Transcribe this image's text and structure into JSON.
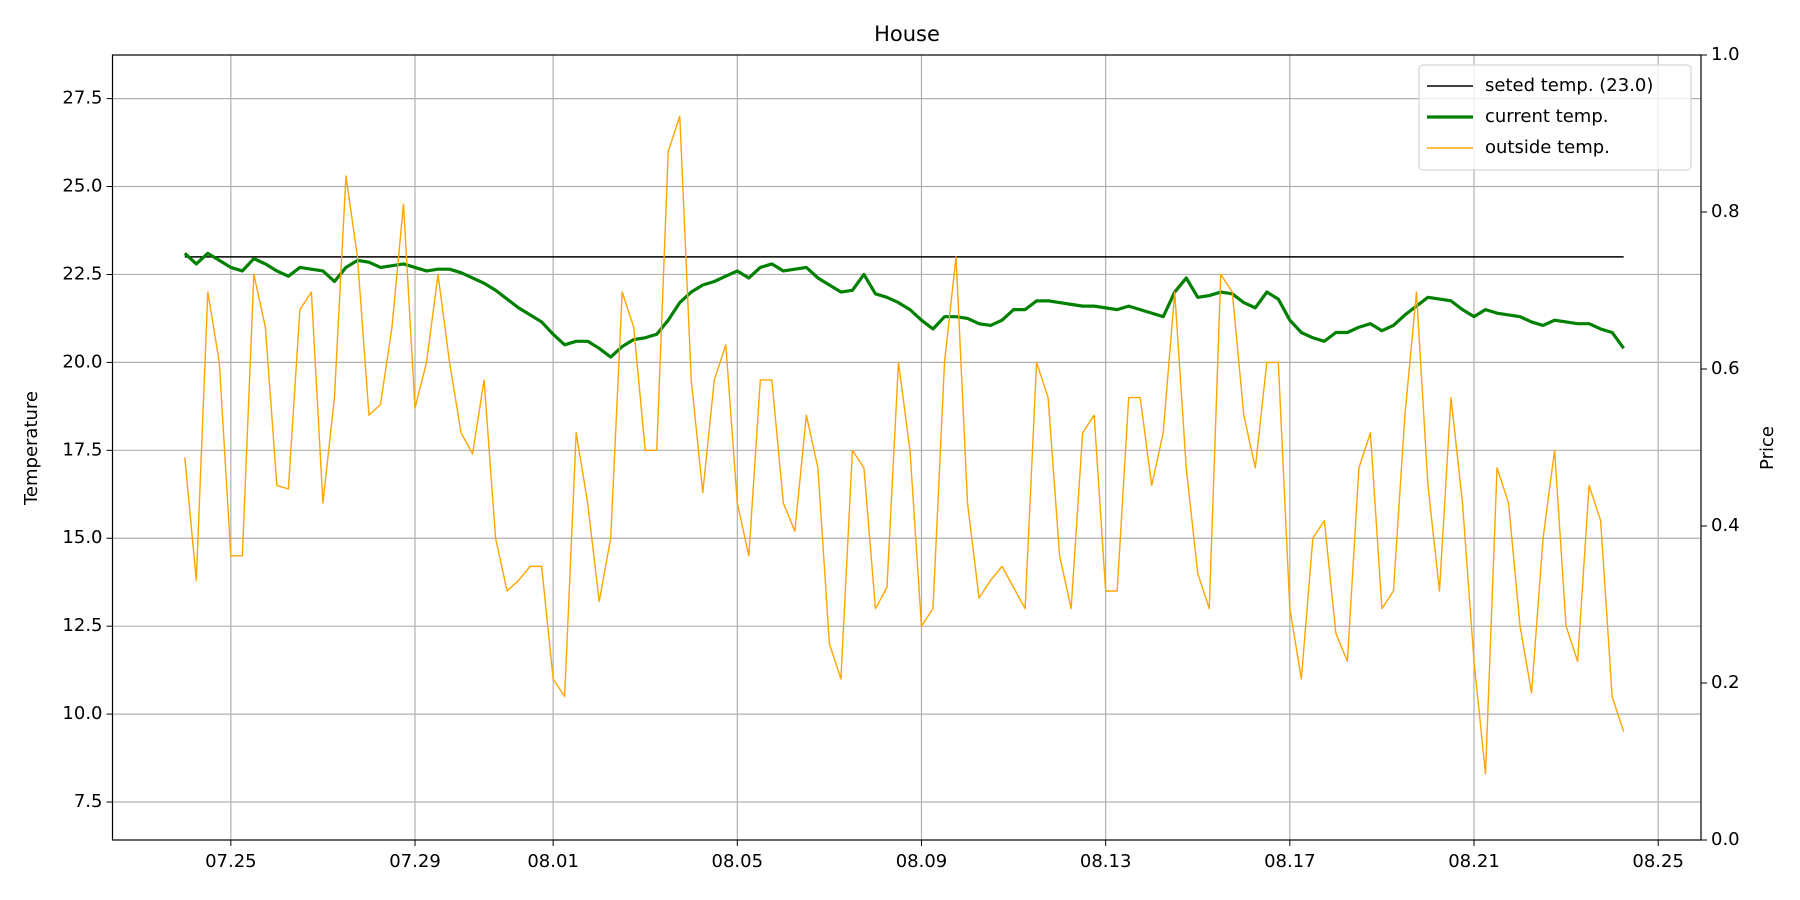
{
  "chart_data": {
    "type": "line",
    "title": "House",
    "ylabel": "Temperature",
    "y2label": "Price",
    "x": [
      24.0,
      24.25,
      24.5,
      24.75,
      25.0,
      25.25,
      25.5,
      25.75,
      26.0,
      26.25,
      26.5,
      26.75,
      27.0,
      27.25,
      27.5,
      27.75,
      28.0,
      28.25,
      28.5,
      28.75,
      29.0,
      29.25,
      29.5,
      29.75,
      30.0,
      30.25,
      30.5,
      30.75,
      31.0,
      31.25,
      31.5,
      31.75,
      32.0,
      32.25,
      32.5,
      32.75,
      33.0,
      33.25,
      33.5,
      33.75,
      34.0,
      34.25,
      34.5,
      34.75,
      35.0,
      35.25,
      35.5,
      35.75,
      36.0,
      36.25,
      36.5,
      36.75,
      37.0,
      37.25,
      37.5,
      37.75,
      38.0,
      38.25,
      38.5,
      38.75,
      39.0,
      39.25,
      39.5,
      39.75,
      40.0,
      40.25,
      40.5,
      40.75,
      41.0,
      41.25,
      41.5,
      41.75,
      42.0,
      42.25,
      42.5,
      42.75,
      43.0,
      43.25,
      43.5,
      43.75,
      44.0,
      44.25,
      44.5,
      44.75,
      45.0,
      45.25,
      45.5,
      45.75,
      46.0,
      46.25,
      46.5,
      46.75,
      47.0,
      47.25,
      47.5,
      47.75,
      48.0,
      48.25,
      48.5,
      48.75,
      49.0,
      49.25,
      49.5,
      49.75,
      50.0,
      50.25,
      50.5,
      50.75,
      51.0,
      51.25,
      51.5,
      51.75,
      52.0,
      52.25,
      52.5,
      52.75,
      53.0,
      53.25,
      53.5,
      53.75,
      54.0,
      54.25,
      54.5,
      54.75,
      55.0,
      55.25
    ],
    "series": [
      {
        "name": "seted temp. (23.0)",
        "color": "#000000",
        "width": 1.4,
        "x": [
          24.0,
          55.25
        ],
        "values": [
          23,
          23
        ]
      },
      {
        "name": "current temp.",
        "color": "#008000",
        "width": 3.2,
        "values": [
          23.1,
          22.8,
          23.1,
          22.9,
          22.7,
          22.6,
          22.95,
          22.8,
          22.6,
          22.45,
          22.7,
          22.65,
          22.6,
          22.3,
          22.7,
          22.9,
          22.85,
          22.7,
          22.75,
          22.8,
          22.7,
          22.6,
          22.65,
          22.65,
          22.55,
          22.4,
          22.25,
          22.05,
          21.8,
          21.55,
          21.35,
          21.15,
          20.8,
          20.5,
          20.6,
          20.6,
          20.4,
          20.15,
          20.45,
          20.65,
          20.7,
          20.8,
          21.2,
          21.7,
          22,
          22.2,
          22.3,
          22.45,
          22.6,
          22.4,
          22.7,
          22.8,
          22.6,
          22.65,
          22.7,
          22.4,
          22.2,
          22,
          22.05,
          22.5,
          21.95,
          21.85,
          21.7,
          21.5,
          21.2,
          20.95,
          21.3,
          21.3,
          21.25,
          21.1,
          21.05,
          21.2,
          21.5,
          21.5,
          21.75,
          21.75,
          21.7,
          21.65,
          21.6,
          21.6,
          21.55,
          21.5,
          21.6,
          21.5,
          21.4,
          21.3,
          22,
          22.4,
          21.85,
          21.9,
          22,
          21.95,
          21.7,
          21.55,
          22,
          21.8,
          21.2,
          20.85,
          20.7,
          20.6,
          20.85,
          20.85,
          21,
          21.1,
          20.9,
          21.05,
          21.35,
          21.6,
          21.85,
          21.8,
          21.75,
          21.5,
          21.3,
          21.5,
          21.4,
          21.35,
          21.3,
          21.15,
          21.05,
          21.2,
          21.15,
          21.1,
          21.1,
          20.95,
          20.85,
          20.4
        ]
      },
      {
        "name": "outside temp.",
        "color": "#ffa500",
        "width": 1.4,
        "values": [
          17.3,
          13.8,
          22,
          20,
          14.5,
          14.5,
          22.5,
          21,
          16.5,
          16.4,
          21.5,
          22,
          16,
          19,
          25.3,
          23,
          18.5,
          18.8,
          21,
          24.5,
          18.7,
          20,
          22.5,
          20,
          18,
          17.4,
          19.5,
          15,
          13.5,
          13.8,
          14.2,
          14.2,
          11,
          10.5,
          18,
          16,
          13.2,
          15,
          22,
          21,
          17.5,
          17.5,
          26,
          27,
          19.5,
          16.3,
          19.5,
          20.5,
          16,
          14.5,
          19.5,
          19.5,
          16,
          15.2,
          18.5,
          17,
          12,
          11,
          17.5,
          17,
          13,
          13.6,
          20,
          17.5,
          12.5,
          13,
          20,
          23,
          16,
          13.3,
          13.8,
          14.2,
          13.6,
          13,
          20,
          19,
          14.5,
          13,
          18,
          18.5,
          13.5,
          13.5,
          19,
          19,
          16.5,
          18,
          22,
          17,
          14,
          13,
          22.5,
          22,
          18.5,
          17,
          20,
          20,
          13,
          11,
          15,
          15.5,
          12.3,
          11.5,
          17,
          18,
          13,
          13.5,
          18.5,
          22,
          16.5,
          13.5,
          19,
          16,
          11.5,
          8.3,
          17,
          16,
          12.5,
          10.6,
          15,
          17.5,
          12.5,
          11.5,
          16.5,
          15.5,
          10.5,
          9.5
        ]
      }
    ],
    "xlim": [
      22.43,
      56.93
    ],
    "xticks": [
      {
        "value": 25,
        "label": "07.25"
      },
      {
        "value": 29,
        "label": "07.29"
      },
      {
        "value": 32,
        "label": "08.01"
      },
      {
        "value": 36,
        "label": "08.05"
      },
      {
        "value": 40,
        "label": "08.09"
      },
      {
        "value": 44,
        "label": "08.13"
      },
      {
        "value": 48,
        "label": "08.17"
      },
      {
        "value": 52,
        "label": "08.21"
      },
      {
        "value": 56,
        "label": "08.25"
      }
    ],
    "ylim": [
      6.42,
      28.74
    ],
    "yticks": [
      7.5,
      {
        "value": 10,
        "label": "10.0"
      },
      12.5,
      {
        "value": 15,
        "label": "15.0"
      },
      17.5,
      {
        "value": 20,
        "label": "20.0"
      },
      22.5,
      {
        "value": 25,
        "label": "25.0"
      },
      27.5
    ],
    "y2lim": [
      0,
      1
    ],
    "y2ticks": [
      {
        "value": 0,
        "label": "0.0"
      },
      0.2,
      0.4,
      0.6,
      0.8,
      {
        "value": 1,
        "label": "1.0"
      }
    ],
    "grid": true,
    "grid_color": "#b0b0b0",
    "legend": "upper right"
  }
}
